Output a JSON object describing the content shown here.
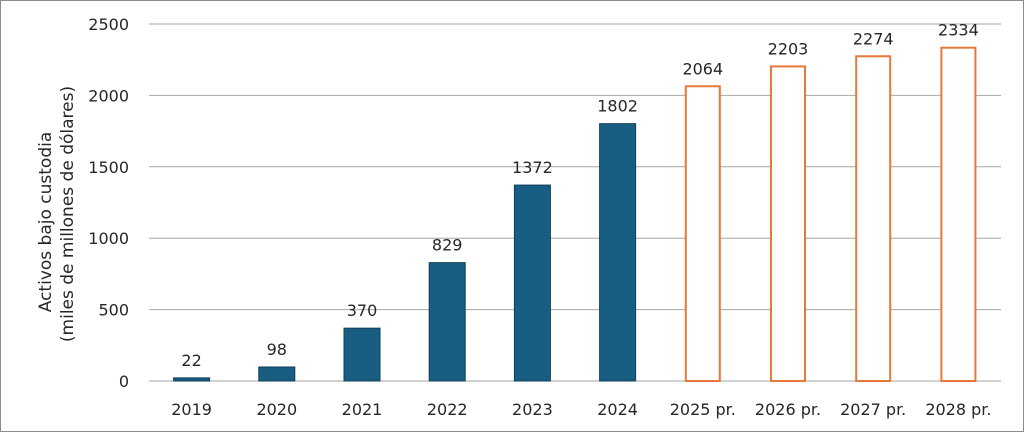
{
  "chart_data": {
    "type": "bar",
    "title": "",
    "xlabel": "",
    "ylabel": "Activos bajo custodia",
    "ylabel_sub": "(miles de millones de dólares)",
    "ylim": [
      0,
      2500
    ],
    "yticks": [
      "0",
      "500",
      "1000",
      "1500",
      "2000",
      "2500"
    ],
    "grid": true,
    "categories": [
      "2019",
      "2020",
      "2021",
      "2022",
      "2023",
      "2024",
      "2025 pr.",
      "2026 pr.",
      "2027 pr.",
      "2028 pr."
    ],
    "values": [
      22,
      98,
      370,
      829,
      1372,
      1802,
      2064,
      2203,
      2274,
      2334
    ],
    "data_labels": [
      "22",
      "98",
      "370",
      "829",
      "1372",
      "1802",
      "2064",
      "2203",
      "2274",
      "2334"
    ],
    "projected": [
      false,
      false,
      false,
      false,
      false,
      false,
      true,
      true,
      true,
      true
    ],
    "colors": {
      "actual_fill": "#175e82",
      "projected_stroke": "#e8773a",
      "projected_fill": "#ffffff",
      "grid": "#a6a6a6"
    }
  }
}
